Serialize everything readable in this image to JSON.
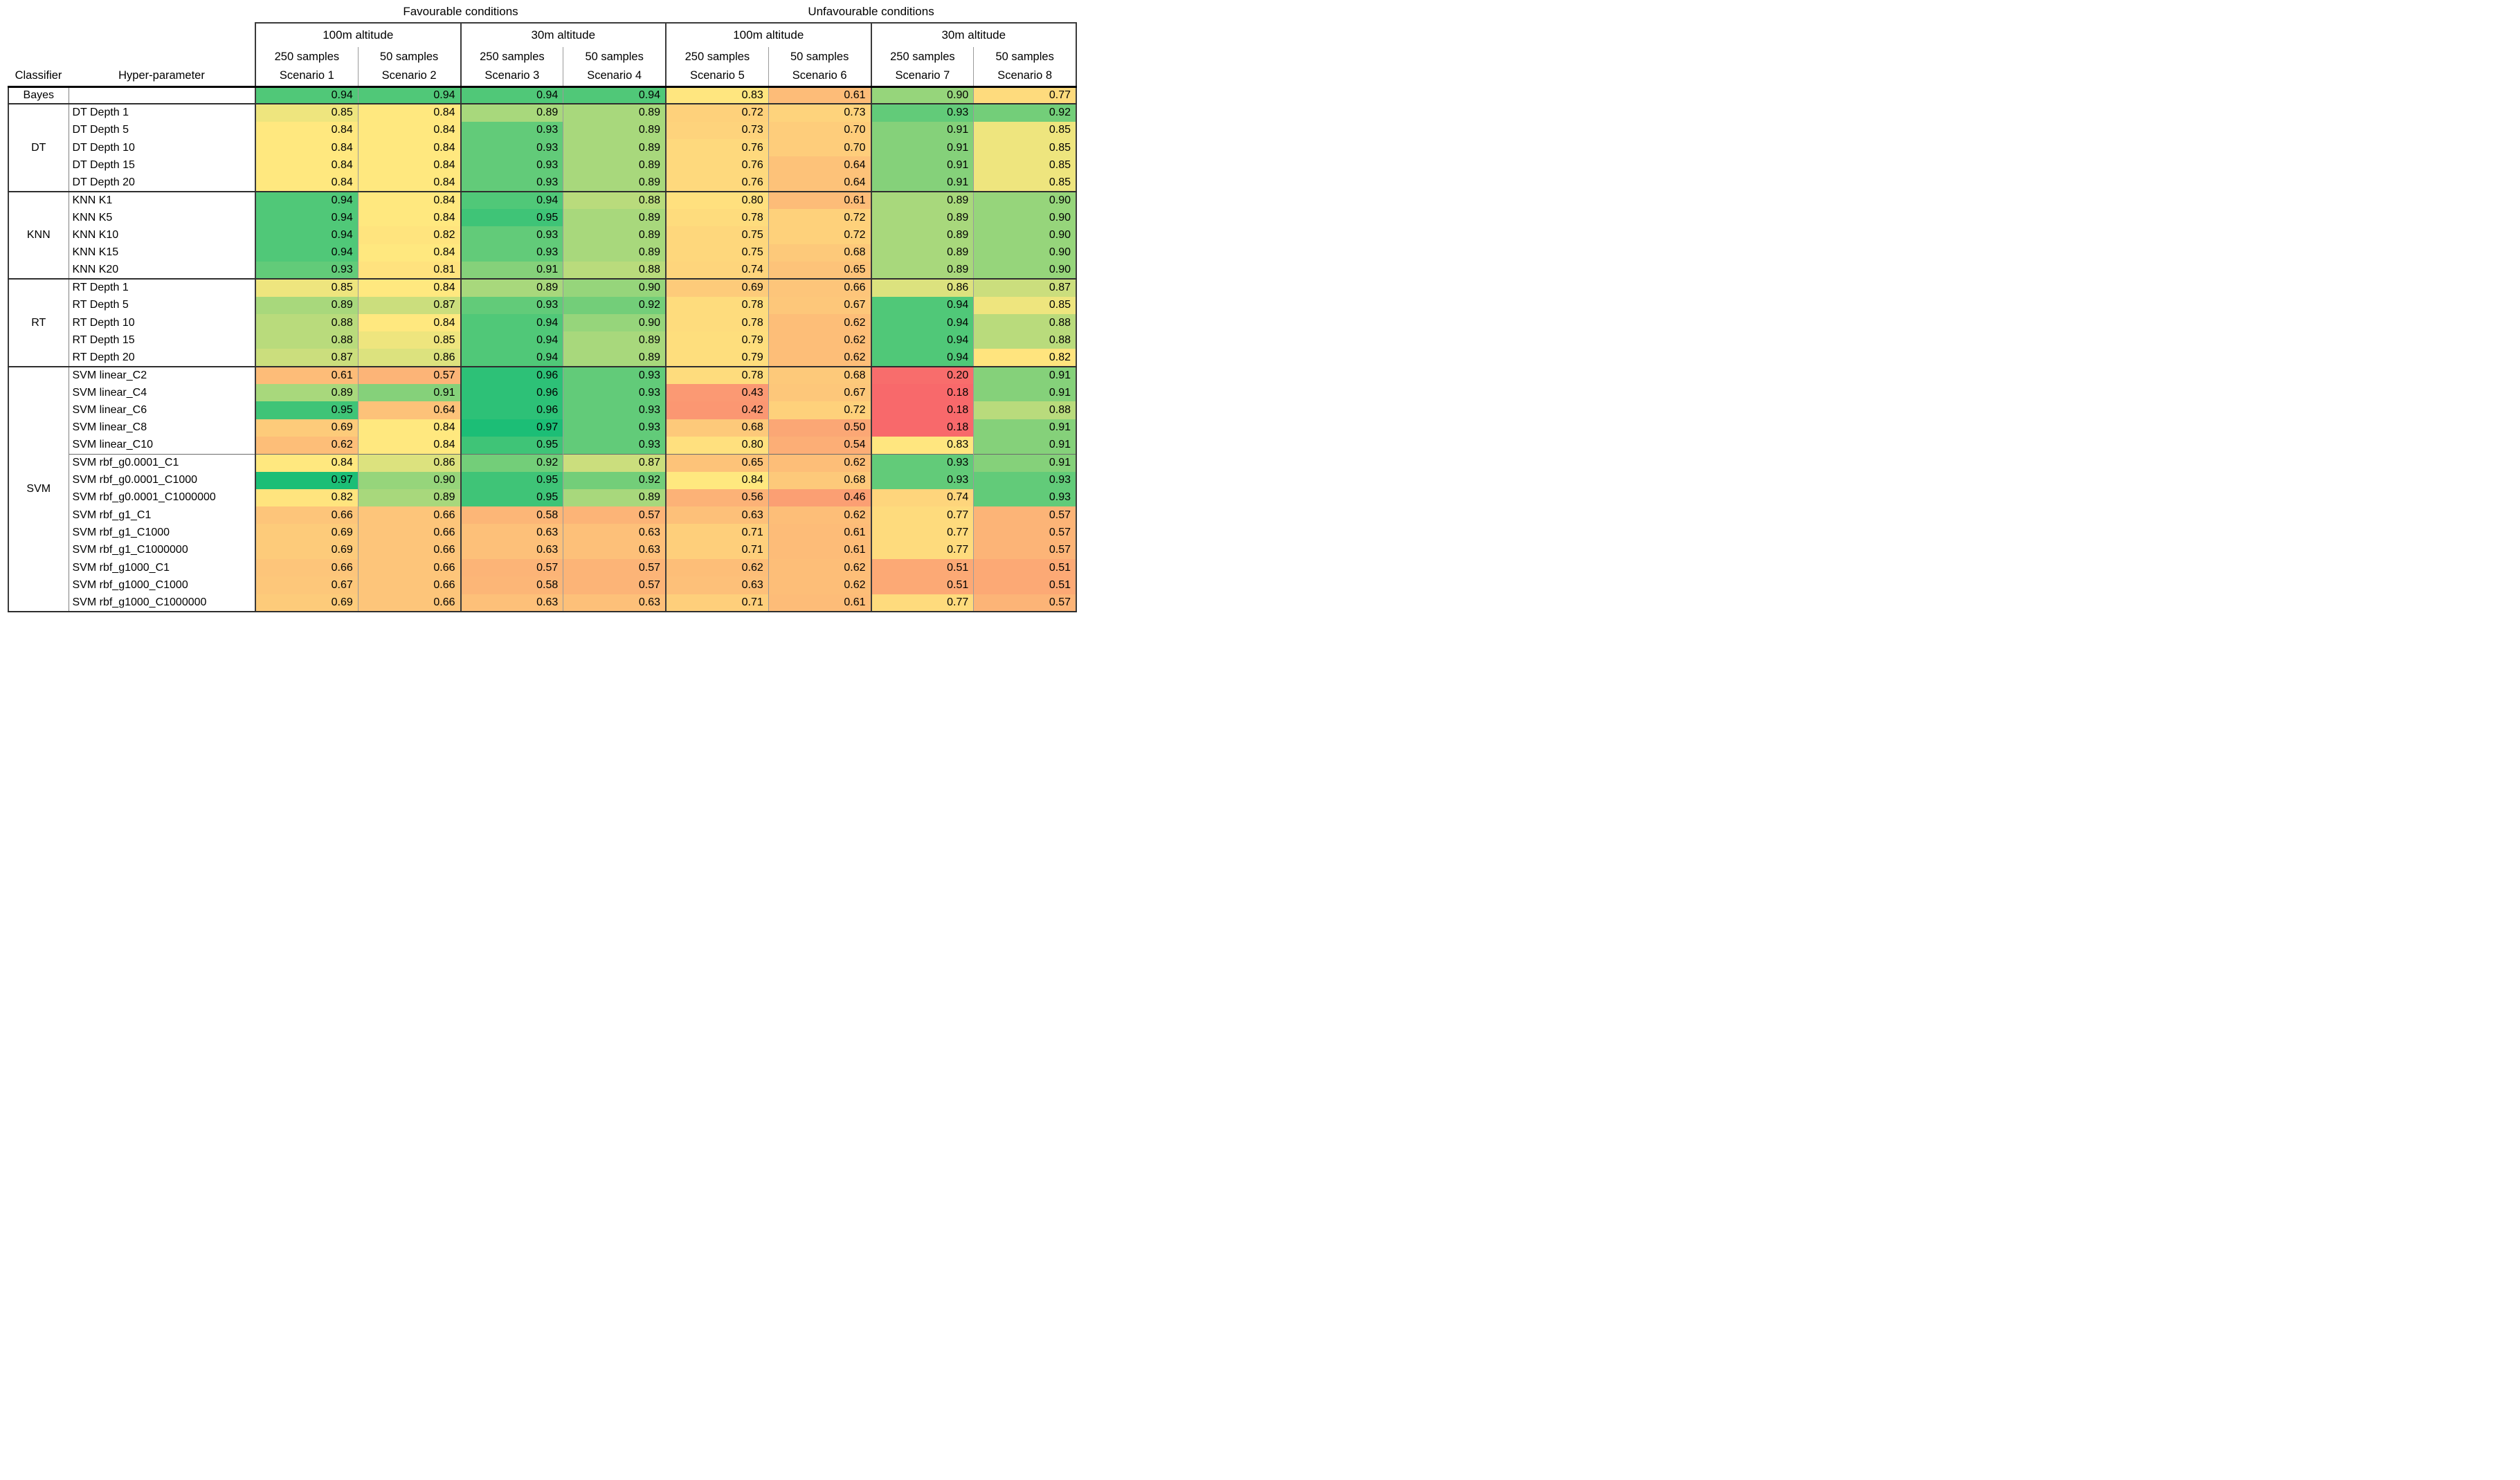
{
  "chart_data": {
    "type": "heatmap",
    "column_group_headers": [
      "Favourable conditions",
      "Unfavourable conditions"
    ],
    "altitude_headers": [
      "100m altitude",
      "30m altitude",
      "100m altitude",
      "30m altitude"
    ],
    "sample_headers": [
      "250 samples",
      "50 samples",
      "250 samples",
      "50 samples",
      "250 samples",
      "50 samples",
      "250 samples",
      "50 samples"
    ],
    "scenario_headers": [
      "Scenario 1",
      "Scenario 2",
      "Scenario 3",
      "Scenario 4",
      "Scenario 5",
      "Scenario 6",
      "Scenario 7",
      "Scenario 8"
    ],
    "row_header_labels": {
      "classifier": "Classifier",
      "hyperparameter": "Hyper-parameter"
    },
    "value_range": [
      0,
      1
    ],
    "color_scale": {
      "min": {
        "value": 0.18,
        "color": "#F8696B"
      },
      "mid": {
        "value": 0.84,
        "color": "#FFE87F"
      },
      "max": {
        "value": 0.97,
        "color": "#1CBE76"
      }
    },
    "groups": [
      {
        "classifier": "Bayes",
        "rows": [
          {
            "hyperparameter": "",
            "values": [
              0.94,
              0.94,
              0.94,
              0.94,
              0.83,
              0.61,
              0.9,
              0.77
            ]
          }
        ]
      },
      {
        "classifier": "DT",
        "rows": [
          {
            "hyperparameter": "DT Depth 1",
            "values": [
              0.85,
              0.84,
              0.89,
              0.89,
              0.72,
              0.73,
              0.93,
              0.92
            ]
          },
          {
            "hyperparameter": "DT Depth 5",
            "values": [
              0.84,
              0.84,
              0.93,
              0.89,
              0.73,
              0.7,
              0.91,
              0.85
            ]
          },
          {
            "hyperparameter": "DT Depth 10",
            "values": [
              0.84,
              0.84,
              0.93,
              0.89,
              0.76,
              0.7,
              0.91,
              0.85
            ]
          },
          {
            "hyperparameter": "DT Depth 15",
            "values": [
              0.84,
              0.84,
              0.93,
              0.89,
              0.76,
              0.64,
              0.91,
              0.85
            ]
          },
          {
            "hyperparameter": "DT Depth 20",
            "values": [
              0.84,
              0.84,
              0.93,
              0.89,
              0.76,
              0.64,
              0.91,
              0.85
            ]
          }
        ]
      },
      {
        "classifier": "KNN",
        "rows": [
          {
            "hyperparameter": "KNN K1",
            "values": [
              0.94,
              0.84,
              0.94,
              0.88,
              0.8,
              0.61,
              0.89,
              0.9
            ]
          },
          {
            "hyperparameter": "KNN K5",
            "values": [
              0.94,
              0.84,
              0.95,
              0.89,
              0.78,
              0.72,
              0.89,
              0.9
            ]
          },
          {
            "hyperparameter": "KNN K10",
            "values": [
              0.94,
              0.82,
              0.93,
              0.89,
              0.75,
              0.72,
              0.89,
              0.9
            ]
          },
          {
            "hyperparameter": "KNN K15",
            "values": [
              0.94,
              0.84,
              0.93,
              0.89,
              0.75,
              0.68,
              0.89,
              0.9
            ]
          },
          {
            "hyperparameter": "KNN K20",
            "values": [
              0.93,
              0.81,
              0.91,
              0.88,
              0.74,
              0.65,
              0.89,
              0.9
            ]
          }
        ]
      },
      {
        "classifier": "RT",
        "rows": [
          {
            "hyperparameter": "RT Depth 1",
            "values": [
              0.85,
              0.84,
              0.89,
              0.9,
              0.69,
              0.66,
              0.86,
              0.87
            ]
          },
          {
            "hyperparameter": "RT Depth 5",
            "values": [
              0.89,
              0.87,
              0.93,
              0.92,
              0.78,
              0.67,
              0.94,
              0.85
            ]
          },
          {
            "hyperparameter": "RT Depth 10",
            "values": [
              0.88,
              0.84,
              0.94,
              0.9,
              0.78,
              0.62,
              0.94,
              0.88
            ]
          },
          {
            "hyperparameter": "RT Depth 15",
            "values": [
              0.88,
              0.85,
              0.94,
              0.89,
              0.79,
              0.62,
              0.94,
              0.88
            ]
          },
          {
            "hyperparameter": "RT Depth 20",
            "values": [
              0.87,
              0.86,
              0.94,
              0.89,
              0.79,
              0.62,
              0.94,
              0.82
            ]
          }
        ]
      },
      {
        "classifier": "SVM",
        "subsection_start_row_index": 5,
        "rows": [
          {
            "hyperparameter": "SVM linear_C2",
            "values": [
              0.61,
              0.57,
              0.96,
              0.93,
              0.78,
              0.68,
              0.2,
              0.91
            ]
          },
          {
            "hyperparameter": "SVM linear_C4",
            "values": [
              0.89,
              0.91,
              0.96,
              0.93,
              0.43,
              0.67,
              0.18,
              0.91
            ]
          },
          {
            "hyperparameter": "SVM linear_C6",
            "values": [
              0.95,
              0.64,
              0.96,
              0.93,
              0.42,
              0.72,
              0.18,
              0.88
            ]
          },
          {
            "hyperparameter": "SVM linear_C8",
            "values": [
              0.69,
              0.84,
              0.97,
              0.93,
              0.68,
              0.5,
              0.18,
              0.91
            ]
          },
          {
            "hyperparameter": "SVM linear_C10",
            "values": [
              0.62,
              0.84,
              0.95,
              0.93,
              0.8,
              0.54,
              0.83,
              0.91
            ]
          },
          {
            "hyperparameter": "SVM rbf_g0.0001_C1",
            "values": [
              0.84,
              0.86,
              0.92,
              0.87,
              0.65,
              0.62,
              0.93,
              0.91
            ]
          },
          {
            "hyperparameter": "SVM rbf_g0.0001_C1000",
            "values": [
              0.97,
              0.9,
              0.95,
              0.92,
              0.84,
              0.68,
              0.93,
              0.93
            ]
          },
          {
            "hyperparameter": "SVM rbf_g0.0001_C1000000",
            "values": [
              0.82,
              0.89,
              0.95,
              0.89,
              0.56,
              0.46,
              0.74,
              0.93
            ]
          },
          {
            "hyperparameter": "SVM rbf_g1_C1",
            "values": [
              0.66,
              0.66,
              0.58,
              0.57,
              0.63,
              0.62,
              0.77,
              0.57
            ]
          },
          {
            "hyperparameter": "SVM rbf_g1_C1000",
            "values": [
              0.69,
              0.66,
              0.63,
              0.63,
              0.71,
              0.61,
              0.77,
              0.57
            ]
          },
          {
            "hyperparameter": "SVM rbf_g1_C1000000",
            "values": [
              0.69,
              0.66,
              0.63,
              0.63,
              0.71,
              0.61,
              0.77,
              0.57
            ]
          },
          {
            "hyperparameter": "SVM rbf_g1000_C1",
            "values": [
              0.66,
              0.66,
              0.57,
              0.57,
              0.62,
              0.62,
              0.51,
              0.51
            ]
          },
          {
            "hyperparameter": "SVM rbf_g1000_C1000",
            "values": [
              0.67,
              0.66,
              0.58,
              0.57,
              0.63,
              0.62,
              0.51,
              0.51
            ]
          },
          {
            "hyperparameter": "SVM rbf_g1000_C1000000",
            "values": [
              0.69,
              0.66,
              0.63,
              0.63,
              0.71,
              0.61,
              0.77,
              0.57
            ]
          }
        ]
      }
    ]
  }
}
